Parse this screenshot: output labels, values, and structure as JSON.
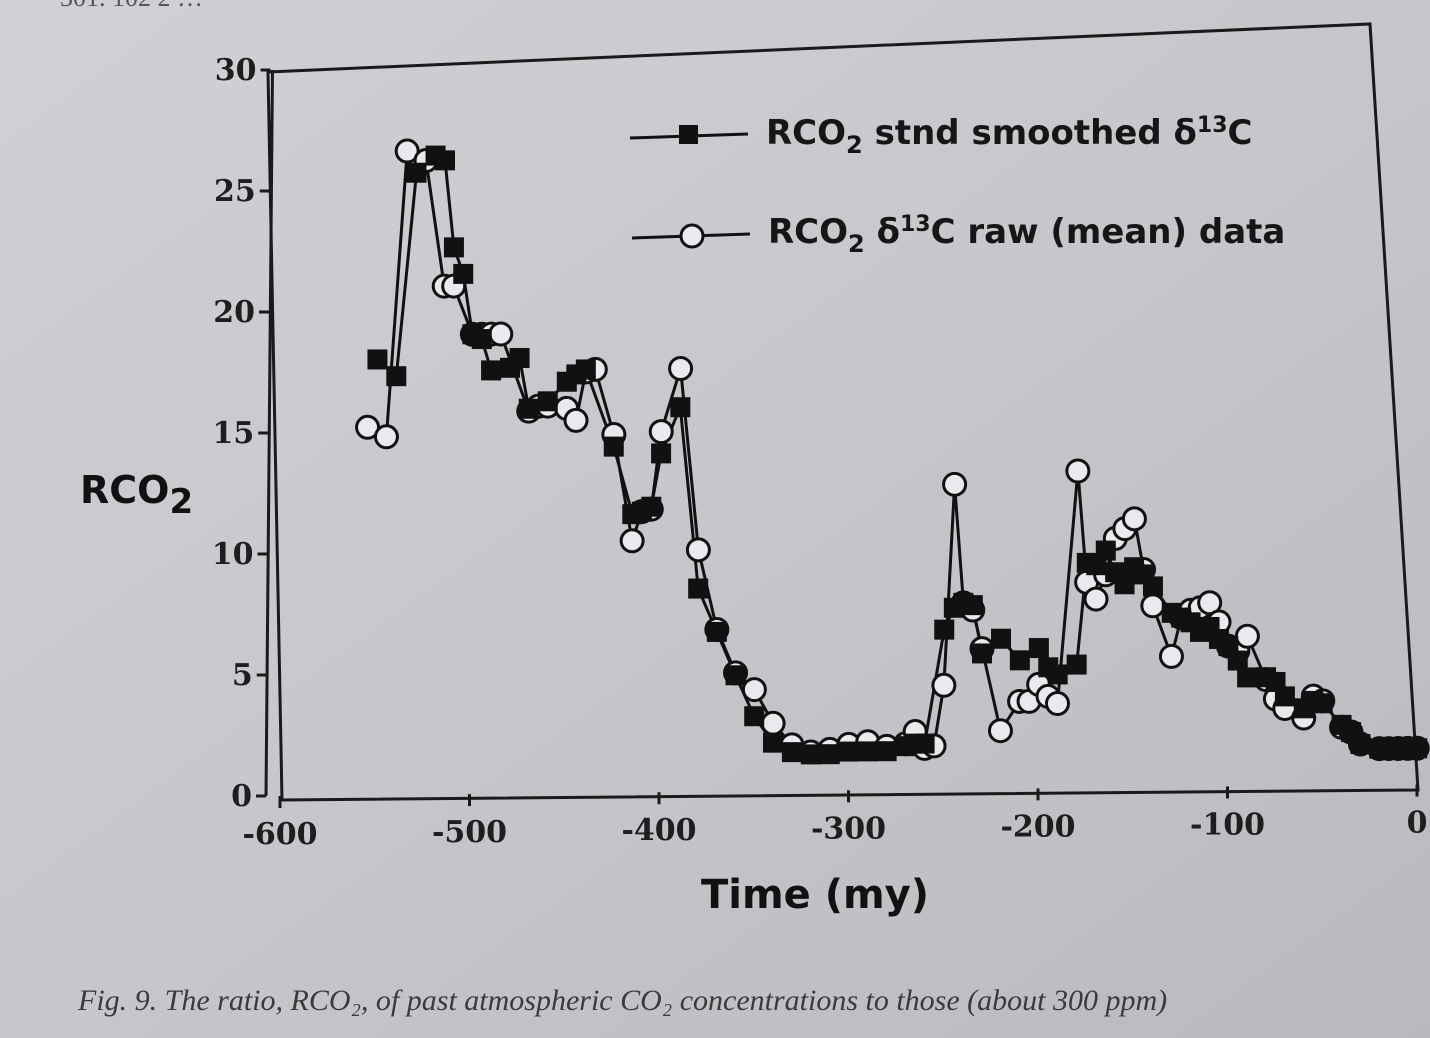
{
  "chart_data": {
    "type": "line",
    "xlabel": "Time (my)",
    "ylabel": "RCO",
    "ylabel_sub": "2",
    "xlim": [
      -600,
      0
    ],
    "ylim": [
      0,
      30
    ],
    "x_ticks": [
      -600,
      -500,
      -400,
      -300,
      -200,
      -100,
      0
    ],
    "x_tick_labels": [
      "-600",
      "-500",
      "-400",
      "-300",
      "-200",
      "-100",
      "0"
    ],
    "y_ticks": [
      0,
      5,
      10,
      15,
      20,
      25,
      30
    ],
    "y_tick_labels": [
      "0",
      "5",
      "10",
      "15",
      "20",
      "25",
      "30"
    ],
    "legend_position": "top-right",
    "series": [
      {
        "name": "stnd smoothed",
        "marker": "filled-square",
        "x": [
          -550,
          -540,
          -530,
          -520,
          -515,
          -510,
          -505,
          -500,
          -495,
          -490,
          -480,
          -475,
          -470,
          -460,
          -450,
          -445,
          -440,
          -425,
          -415,
          -410,
          -405,
          -400,
          -390,
          -380,
          -370,
          -360,
          -350,
          -340,
          -330,
          -320,
          -310,
          -300,
          -290,
          -280,
          -270,
          -265,
          -260,
          -250,
          -245,
          -240,
          -235,
          -230,
          -220,
          -210,
          -200,
          -195,
          -190,
          -180,
          -175,
          -170,
          -165,
          -160,
          -155,
          -150,
          -145,
          -140,
          -130,
          -125,
          -120,
          -115,
          -110,
          -105,
          -100,
          -95,
          -90,
          -80,
          -75,
          -70,
          -60,
          -55,
          -50,
          -40,
          -35,
          -30,
          -20,
          -15,
          -10,
          -5,
          0
        ],
        "y": [
          18,
          17.3,
          25.7,
          26.4,
          26.2,
          22.6,
          21.5,
          19,
          18.8,
          17.5,
          17.6,
          18,
          15.9,
          16.2,
          17,
          17.3,
          17.5,
          14.3,
          11.5,
          11.6,
          11.8,
          14,
          15.9,
          8.4,
          6.6,
          4.8,
          3.1,
          2,
          1.6,
          1.5,
          1.5,
          1.6,
          1.6,
          1.6,
          1.8,
          1.9,
          1.9,
          6.6,
          7.5,
          7.7,
          7.6,
          5.6,
          6.2,
          5.3,
          5.8,
          5,
          4.7,
          5.1,
          9.3,
          9.2,
          9.8,
          8.9,
          8.4,
          9.1,
          8.8,
          8.3,
          7.2,
          7,
          6.8,
          6.4,
          6.6,
          6.1,
          5.8,
          5.2,
          4.5,
          4.5,
          4.3,
          3.7,
          3.2,
          3.5,
          3.4,
          2.5,
          2.2,
          1.7,
          1.5,
          1.5,
          1.5,
          1.5,
          1.5
        ]
      },
      {
        "name": "raw (mean) data",
        "marker": "open-circle",
        "x": [
          -555,
          -545,
          -535,
          -525,
          -515,
          -510,
          -500,
          -495,
          -490,
          -485,
          -470,
          -465,
          -460,
          -450,
          -445,
          -440,
          -435,
          -425,
          -415,
          -410,
          -405,
          -400,
          -390,
          -380,
          -370,
          -360,
          -350,
          -340,
          -330,
          -320,
          -310,
          -300,
          -290,
          -280,
          -270,
          -265,
          -260,
          -255,
          -250,
          -245,
          -240,
          -235,
          -230,
          -220,
          -210,
          -205,
          -200,
          -195,
          -190,
          -180,
          -175,
          -170,
          -165,
          -160,
          -155,
          -150,
          -145,
          -140,
          -130,
          -125,
          -120,
          -115,
          -110,
          -105,
          -100,
          -95,
          -90,
          -80,
          -75,
          -70,
          -60,
          -55,
          -50,
          -40,
          -35,
          -30,
          -20,
          -15,
          -10,
          -5,
          0
        ],
        "y": [
          15.2,
          14.8,
          26.6,
          26.2,
          21,
          21,
          19,
          19,
          19,
          19,
          15.8,
          16,
          16,
          15.9,
          15.4,
          17.4,
          17.5,
          14.8,
          10.4,
          11.6,
          11.7,
          14.9,
          17.5,
          10,
          6.7,
          4.9,
          4.2,
          2.8,
          1.9,
          1.6,
          1.7,
          1.9,
          2,
          1.8,
          1.9,
          2.4,
          1.7,
          1.8,
          4.3,
          12.6,
          7.7,
          7.4,
          5.8,
          2.4,
          3.6,
          3.6,
          4.3,
          3.8,
          3.5,
          13.1,
          8.5,
          7.8,
          8.8,
          10.3,
          10.7,
          11.1,
          9,
          7.5,
          5.4,
          7,
          7.3,
          7.4,
          7.6,
          6.8,
          5.8,
          5.6,
          6.2,
          4.4,
          3.6,
          3.2,
          2.8,
          3.7,
          3.5,
          2.4,
          2.2,
          1.7,
          1.5,
          1.5,
          1.5,
          1.5,
          1.5
        ]
      }
    ]
  },
  "legend": {
    "items": [
      {
        "prefix": "RCO",
        "sub": "2",
        "text": " stnd smoothed δ",
        "sup": "13",
        "suffix": "C"
      },
      {
        "prefix": "RCO",
        "sub": "2",
        "text": " δ",
        "sup": "13",
        "suffix": "C raw (mean) data"
      }
    ]
  },
  "caption": {
    "text": "Fig. 9. The ratio, RCO₂, of past atmospheric CO₂ concentrations to those (about 300 ppm)"
  },
  "top_fragment": {
    "text": "301. 102 2 …"
  }
}
